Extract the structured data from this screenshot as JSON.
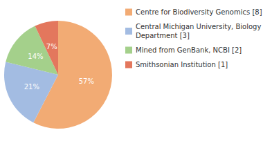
{
  "chart_data": {
    "type": "pie",
    "categories": [
      "Centre for Biodiversity Genomics [8]",
      "Central Michigan University, Biology Department [3]",
      "Mined from GenBank, NCBI [2]",
      "Smithsonian Institution [1]"
    ],
    "values": [
      57,
      21,
      14,
      7
    ],
    "value_labels": [
      "57%",
      "21%",
      "14%",
      "7%"
    ],
    "colors": [
      "#f2ab74",
      "#a3bce2",
      "#a4d08b",
      "#e3775d"
    ],
    "data_labels": true,
    "legend": "right"
  }
}
